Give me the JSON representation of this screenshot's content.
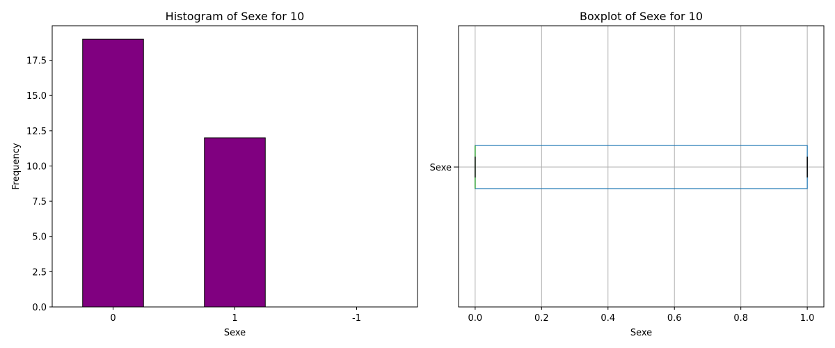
{
  "chart_data": [
    {
      "type": "bar",
      "title": "Histogram of Sexe for 10",
      "xlabel": "Sexe",
      "ylabel": "Frequency",
      "categories": [
        "0",
        "1",
        "-1"
      ],
      "values": [
        19,
        12,
        0
      ],
      "ylim": [
        0,
        19.95
      ],
      "yticks": [
        "0.0",
        "2.5",
        "5.0",
        "7.5",
        "10.0",
        "12.5",
        "15.0",
        "17.5"
      ],
      "bar_color": "#800080",
      "edge_color": "#000000",
      "grid": false
    },
    {
      "type": "boxplot",
      "title": "Boxplot of Sexe for 10",
      "xlabel": "Sexe",
      "category": "Sexe",
      "box": {
        "min": 0,
        "q1": 0,
        "median": 0,
        "q3": 1,
        "max": 1
      },
      "xlim": [
        -0.05,
        1.05
      ],
      "xticks": [
        "0.0",
        "0.2",
        "0.4",
        "0.6",
        "0.8",
        "1.0"
      ],
      "box_color": "#1f77b4",
      "median_color": "#2ca02c",
      "grid": true
    }
  ]
}
